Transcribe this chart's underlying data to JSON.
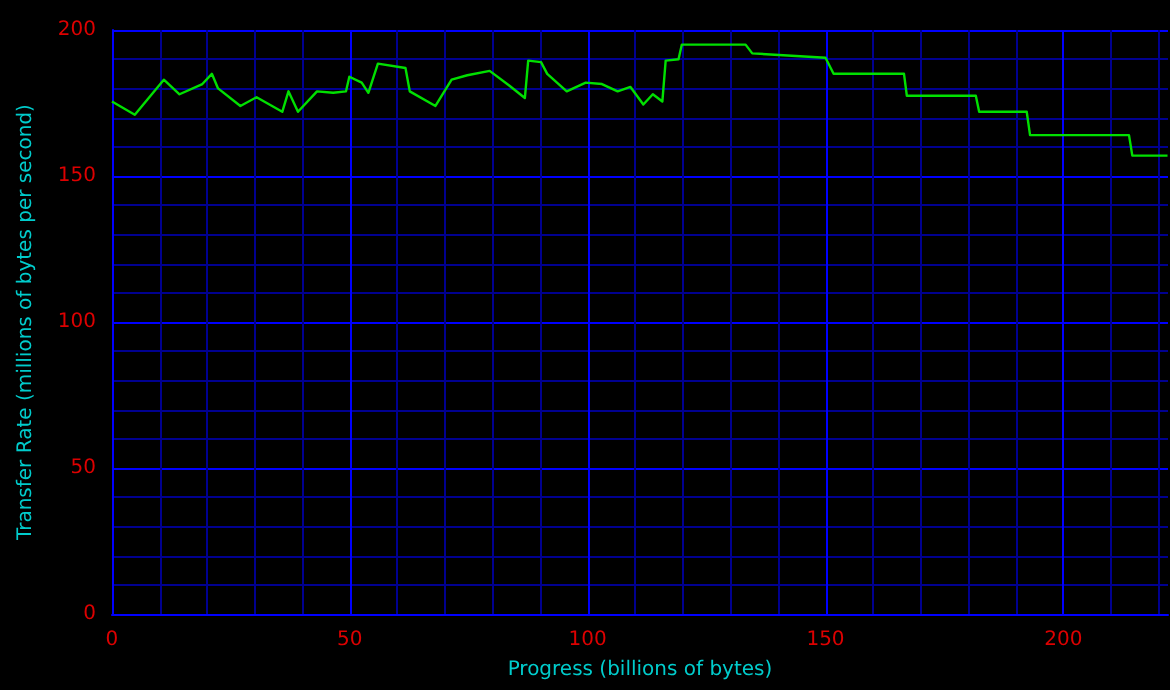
{
  "chart_data": {
    "type": "line",
    "xlabel": "Progress (billions of bytes)",
    "ylabel": "Transfer Rate (millions of bytes per second)",
    "xlim": [
      0,
      222
    ],
    "ylim": [
      0,
      200
    ],
    "xticks": [
      0,
      {
        "value": 10,
        "label": null
      },
      {
        "value": 20,
        "label": null
      },
      {
        "value": 30,
        "label": null
      },
      {
        "value": 40,
        "label": null
      },
      50,
      {
        "value": 60,
        "label": null
      },
      {
        "value": 70,
        "label": null
      },
      {
        "value": 80,
        "label": null
      },
      {
        "value": 90,
        "label": null
      },
      100,
      {
        "value": 110,
        "label": null
      },
      {
        "value": 120,
        "label": null
      },
      {
        "value": 130,
        "label": null
      },
      {
        "value": 140,
        "label": null
      },
      150,
      {
        "value": 160,
        "label": null
      },
      {
        "value": 170,
        "label": null
      },
      {
        "value": 180,
        "label": null
      },
      {
        "value": 190,
        "label": null
      },
      200,
      {
        "value": 210,
        "label": null
      },
      {
        "value": 220,
        "label": null
      }
    ],
    "yticks": [
      0,
      {
        "value": 10,
        "label": null
      },
      {
        "value": 20,
        "label": null
      },
      {
        "value": 30,
        "label": null
      },
      {
        "value": 40,
        "label": null
      },
      50,
      {
        "value": 60,
        "label": null
      },
      {
        "value": 70,
        "label": null
      },
      {
        "value": 80,
        "label": null
      },
      {
        "value": 90,
        "label": null
      },
      100,
      {
        "value": 110,
        "label": null
      },
      {
        "value": 120,
        "label": null
      },
      {
        "value": 130,
        "label": null
      },
      {
        "value": 140,
        "label": null
      },
      150,
      {
        "value": 160,
        "label": null
      },
      {
        "value": 170,
        "label": null
      },
      {
        "value": 180,
        "label": null
      },
      {
        "value": 190,
        "label": null
      },
      200
    ],
    "grid": true,
    "marker": "none",
    "line_style": "solid",
    "series": [
      {
        "color": "#00e000",
        "x": [
          0,
          4.8,
          10.9,
          14.2,
          19,
          21,
          22.3,
          27,
          30.4,
          35.8,
          37.1,
          39.1,
          43.1,
          46.5,
          49.2,
          49.9,
          52.5,
          53.9,
          55.9,
          61.7,
          62.6,
          68,
          71.4,
          74.7,
          79.4,
          83.5,
          86.8,
          87.5,
          90.2,
          91.5,
          95.6,
          99.6,
          103,
          106.3,
          109,
          111.7,
          113.7,
          115.7,
          116.4,
          119.1,
          119.8,
          133.2,
          134.6,
          150,
          151.7,
          166.5,
          167.1,
          181.6,
          182.3,
          192.3,
          193,
          213.8,
          214.5,
          221.9
        ],
        "values": [
          175.5,
          171,
          183,
          178,
          181.5,
          185,
          180,
          174,
          177,
          172,
          179,
          172,
          179,
          178.5,
          179,
          184,
          182,
          178.5,
          188.5,
          187,
          179,
          174,
          183,
          184.5,
          186,
          181,
          176.7,
          189.5,
          189,
          185,
          179,
          182,
          181.5,
          179,
          180.5,
          174.5,
          178,
          175.5,
          189.5,
          190,
          195,
          195,
          192,
          190.5,
          185,
          185,
          177.5,
          177.5,
          172,
          172,
          164,
          164,
          157,
          157
        ]
      }
    ]
  }
}
